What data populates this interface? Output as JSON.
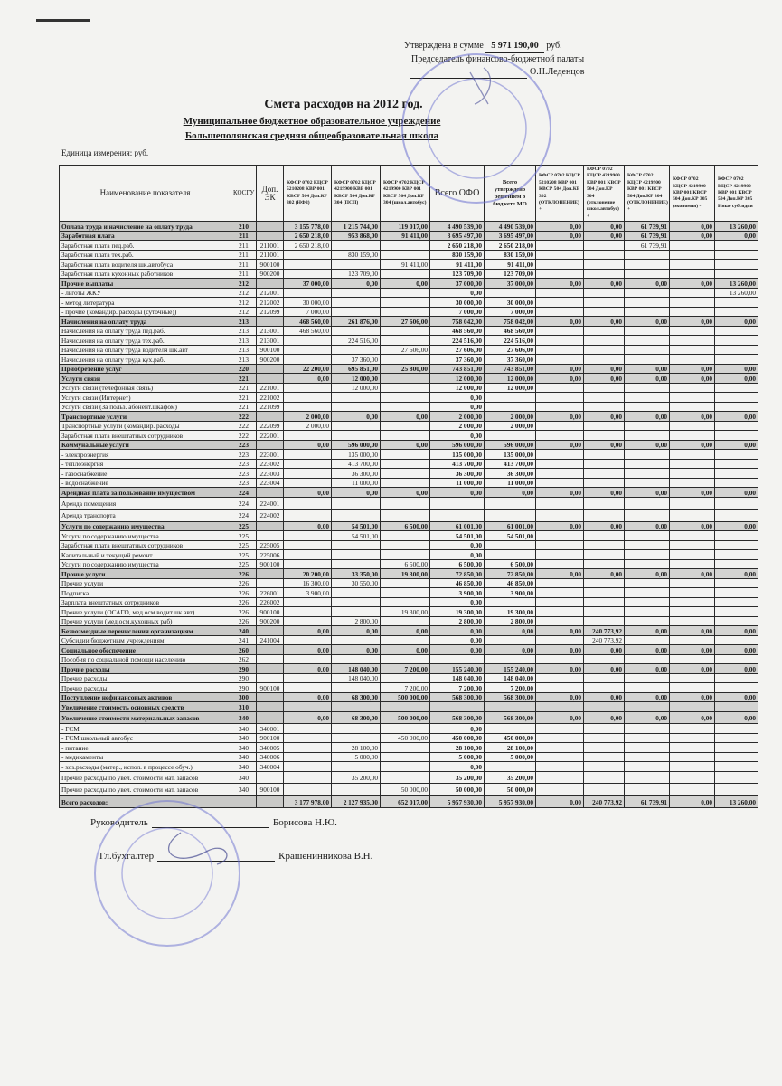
{
  "approval": {
    "prefix": "Утверждена в сумме",
    "sum": "5 971 190,00",
    "currency": "руб.",
    "position": "Председатель финансово-бюджетной палаты",
    "name": "О.Н.Леденцов"
  },
  "title": "Смета расходов на 2012 год.",
  "subtitle1": "Муниципальное бюджетное образовательное учреждение",
  "subtitle2": "Большеполянская средняя общеобразовательная школа",
  "units": "Единица измерения: руб.",
  "headers": [
    "Наименование показателя",
    "КОСГУ",
    "Доп. ЭК",
    "КФСР 0702 КЦСР 5210208 КВР 001 КВСР 504 Доп.КР 302 (НФЗ)",
    "КФСР 0702 КЦСР 4219900 КВР 001 КВСР 504 Доп.КР 304 (ПСП)",
    "КФСР 0702 КЦСР 4219900 КВР 001 КВСР 504 Доп.КР 304 (школ.автобус)",
    "Всего ОФО",
    "Всего утверждено решением о бюджете МО",
    "КФСР 0702 КЦСР 5210208 КВР 001 КВСР 504 Доп.КР 302 (ОТКЛОНЕНИЕ) +",
    "КФСР 0702 КЦСР 4219900 КВР 001 КВСР 504 Доп.КР 304 (отклонение школ.автобус) +",
    "КФСР 0702 КЦСР 4219900 КВР 001 КВСР 504 Доп.КР 304 (ОТКЛОНЕНИЕ) +",
    "КФСР 0702 КЦСР 4219900 КВР 001 КВСР 504 Доп.КР 305 (экономия) -",
    "КФСР 0702 КЦСР 4219900 КВР 001 КВСР 504 Доп.КР 305 Иные субсидии"
  ],
  "rows": [
    {
      "bold": true,
      "cells": [
        "Оплата труда  и начисление на оплату  труда",
        "210",
        "",
        "3 155 778,00",
        "1 215 744,00",
        "119 017,00",
        "4 490 539,00",
        "4 490 539,00",
        "0,00",
        "0,00",
        "61 739,91",
        "0,00",
        "13 260,00"
      ]
    },
    {
      "bold": true,
      "cells": [
        "Заработная плата",
        "211",
        "",
        "2 650 218,00",
        "953 868,00",
        "91 411,00",
        "3 695 497,00",
        "3 695 497,00",
        "0,00",
        "0,00",
        "61 739,91",
        "0,00",
        "0,00"
      ]
    },
    {
      "cells": [
        "Заработная  плата        пед.раб.",
        "211",
        "211001",
        "2 650 218,00",
        "",
        "",
        "2 650 218,00",
        "2 650 218,00",
        "",
        "",
        "61 739,91",
        "",
        ""
      ]
    },
    {
      "cells": [
        "Заработная  плата        тех.раб.",
        "211",
        "211001",
        "",
        "830 159,00",
        "",
        "830 159,00",
        "830 159,00",
        "",
        "",
        "",
        "",
        ""
      ]
    },
    {
      "cells": [
        "Заработная  плата        водителя шк.автобуса",
        "211",
        "900100",
        "",
        "",
        "91 411,00",
        "91 411,00",
        "91 411,00",
        "",
        "",
        "",
        "",
        ""
      ]
    },
    {
      "cells": [
        "Заработная  плата        кухонных работников",
        "211",
        "900200",
        "",
        "123 709,00",
        "",
        "123 709,00",
        "123 709,00",
        "",
        "",
        "",
        "",
        ""
      ]
    },
    {
      "bold": true,
      "cells": [
        "Прочие  выплаты",
        "212",
        "",
        "37 000,00",
        "0,00",
        "0,00",
        "37 000,00",
        "37 000,00",
        "0,00",
        "0,00",
        "0,00",
        "0,00",
        "13 260,00"
      ]
    },
    {
      "cells": [
        "- льготы ЖКУ",
        "212",
        "212001",
        "",
        "",
        "",
        "0,00",
        "",
        "",
        "",
        "",
        "",
        "13 260,00"
      ]
    },
    {
      "cells": [
        "- метод литература",
        "212",
        "212002",
        "30 000,00",
        "",
        "",
        "30 000,00",
        "30 000,00",
        "",
        "",
        "",
        "",
        ""
      ]
    },
    {
      "cells": [
        "- прочие (командир. расходы (суточные))",
        "212",
        "212099",
        "7 000,00",
        "",
        "",
        "7 000,00",
        "7 000,00",
        "",
        "",
        "",
        "",
        ""
      ]
    },
    {
      "bold": true,
      "cells": [
        "Начисления на оплату труда",
        "213",
        "",
        "468 560,00",
        "261 876,00",
        "27 606,00",
        "758 042,00",
        "758 042,00",
        "0,00",
        "0,00",
        "0,00",
        "0,00",
        "0,00"
      ]
    },
    {
      "cells": [
        "Начисления  на оплату труда     пед.раб.",
        "213",
        "213001",
        "468 560,00",
        "",
        "",
        "468 560,00",
        "468 560,00",
        "",
        "",
        "",
        "",
        ""
      ]
    },
    {
      "cells": [
        "Начисления  на оплату труда     тех.раб.",
        "213",
        "213001",
        "",
        "224 516,00",
        "",
        "224 516,00",
        "224 516,00",
        "",
        "",
        "",
        "",
        ""
      ]
    },
    {
      "cells": [
        "Начисления  на оплату труда   водителя шк.авт",
        "213",
        "900100",
        "",
        "",
        "27 606,00",
        "27 606,00",
        "27 606,00",
        "",
        "",
        "",
        "",
        ""
      ]
    },
    {
      "cells": [
        "Начисления  на оплату труда    кух.раб.",
        "213",
        "900200",
        "",
        "37 360,00",
        "",
        "37 360,00",
        "37 360,00",
        "",
        "",
        "",
        "",
        ""
      ]
    },
    {
      "bold": true,
      "cells": [
        "Приобретение  услуг",
        "220",
        "",
        "22 200,00",
        "695 851,00",
        "25 800,00",
        "743 851,00",
        "743 851,00",
        "0,00",
        "0,00",
        "0,00",
        "0,00",
        "0,00"
      ]
    },
    {
      "bold": true,
      "cells": [
        "Услуги  связи",
        "221",
        "",
        "0,00",
        "12 000,00",
        "",
        "12 000,00",
        "12 000,00",
        "0,00",
        "0,00",
        "0,00",
        "0,00",
        "0,00"
      ]
    },
    {
      "cells": [
        "Услуги  связи (телефонная связь)",
        "221",
        "221001",
        "",
        "12 000,00",
        "",
        "12 000,00",
        "12 000,00",
        "",
        "",
        "",
        "",
        ""
      ]
    },
    {
      "cells": [
        "Услуги  связи (Интернет)",
        "221",
        "221002",
        "",
        "",
        "",
        "0,00",
        "",
        "",
        "",
        "",
        "",
        ""
      ]
    },
    {
      "cells": [
        "Услуги связи (За польз. абонент.шкафом)",
        "221",
        "221099",
        "",
        "",
        "",
        "0,00",
        "",
        "",
        "",
        "",
        "",
        ""
      ]
    },
    {
      "bold": true,
      "cells": [
        "Транспортные  услуги",
        "222",
        "",
        "2 000,00",
        "0,00",
        "0,00",
        "2 000,00",
        "2 000,00",
        "0,00",
        "0,00",
        "0,00",
        "0,00",
        "0,00"
      ]
    },
    {
      "cells": [
        "Транспортные услуги  (командир. расходы",
        "222",
        "222099",
        "2 000,00",
        "",
        "",
        "2 000,00",
        "2 000,00",
        "",
        "",
        "",
        "",
        ""
      ]
    },
    {
      "cells": [
        "Заработная плата внештатных сотрудников",
        "222",
        "222001",
        "",
        "",
        "",
        "0,00",
        "",
        "",
        "",
        "",
        "",
        ""
      ]
    },
    {
      "bold": true,
      "cells": [
        "Коммунальные  услуги",
        "223",
        "",
        "0,00",
        "596 000,00",
        "0,00",
        "596 000,00",
        "596 000,00",
        "0,00",
        "0,00",
        "0,00",
        "0,00",
        "0,00"
      ]
    },
    {
      "cells": [
        "- электроэнергия",
        "223",
        "223001",
        "",
        "135 000,00",
        "",
        "135 000,00",
        "135 000,00",
        "",
        "",
        "",
        "",
        ""
      ]
    },
    {
      "cells": [
        "- теплоэнергия",
        "223",
        "223002",
        "",
        "413 700,00",
        "",
        "413 700,00",
        "413 700,00",
        "",
        "",
        "",
        "",
        ""
      ]
    },
    {
      "cells": [
        "- газоснабжение",
        "223",
        "223003",
        "",
        "36 300,00",
        "",
        "36 300,00",
        "36 300,00",
        "",
        "",
        "",
        "",
        ""
      ]
    },
    {
      "cells": [
        "- водоснабжение",
        "223",
        "223004",
        "",
        "11 000,00",
        "",
        "11 000,00",
        "11 000,00",
        "",
        "",
        "",
        "",
        ""
      ]
    },
    {
      "bold": true,
      "cells": [
        "Арендная плата за пользование имуществом",
        "224",
        "",
        "0,00",
        "0,00",
        "0,00",
        "0,00",
        "0,00",
        "0,00",
        "0,00",
        "0,00",
        "0,00",
        "0,00"
      ]
    },
    {
      "tall": true,
      "cells": [
        "Аренда помещения",
        "224",
        "224001",
        "",
        "",
        "",
        "",
        "",
        "",
        "",
        "",
        "",
        ""
      ]
    },
    {
      "tall": true,
      "cells": [
        "Аренда транспорта",
        "224",
        "224002",
        "",
        "",
        "",
        "",
        "",
        "",
        "",
        "",
        "",
        ""
      ]
    },
    {
      "bold": true,
      "cells": [
        "Услуги по содержанию имущества",
        "225",
        "",
        "0,00",
        "54 501,00",
        "6 500,00",
        "61 001,00",
        "61 001,00",
        "0,00",
        "0,00",
        "0,00",
        "0,00",
        "0,00"
      ]
    },
    {
      "cells": [
        "Услуги по содержанию имущества",
        "225",
        "",
        "",
        "54 501,00",
        "",
        "54 501,00",
        "54 501,00",
        "",
        "",
        "",
        "",
        ""
      ]
    },
    {
      "cells": [
        "Заработная плата внештатных сотрудников",
        "225",
        "225005",
        "",
        "",
        "",
        "0,00",
        "",
        "",
        "",
        "",
        "",
        ""
      ]
    },
    {
      "cells": [
        "Капитальный и текущий ремонт",
        "225",
        "225006",
        "",
        "",
        "",
        "0,00",
        "",
        "",
        "",
        "",
        "",
        ""
      ]
    },
    {
      "cells": [
        "Услуги по содержанию имущества",
        "225",
        "900100",
        "",
        "",
        "6 500,00",
        "6 500,00",
        "6 500,00",
        "",
        "",
        "",
        "",
        ""
      ]
    },
    {
      "bold": true,
      "cells": [
        "Прочие  услуги",
        "226",
        "",
        "20 200,00",
        "33 350,00",
        "19 300,00",
        "72 850,00",
        "72 850,00",
        "0,00",
        "0,00",
        "0,00",
        "0,00",
        "0,00"
      ]
    },
    {
      "cells": [
        "Прочие услуги",
        "226",
        "",
        "16 300,00",
        "30 550,00",
        "",
        "46 850,00",
        "46 850,00",
        "",
        "",
        "",
        "",
        ""
      ]
    },
    {
      "cells": [
        "Подписка",
        "226",
        "226001",
        "3 900,00",
        "",
        "",
        "3 900,00",
        "3 900,00",
        "",
        "",
        "",
        "",
        ""
      ]
    },
    {
      "cells": [
        "Зарплата внештатных сотрудников",
        "226",
        "226002",
        "",
        "",
        "",
        "0,00",
        "",
        "",
        "",
        "",
        "",
        ""
      ]
    },
    {
      "cells": [
        "Прочие услуги (ОСАГО, мед.осм.водит.шк.авт)",
        "226",
        "900100",
        "",
        "",
        "19 300,00",
        "19 300,00",
        "19 300,00",
        "",
        "",
        "",
        "",
        ""
      ]
    },
    {
      "cells": [
        "Прочие услуги (мед.осм.кухонных раб)",
        "226",
        "900200",
        "",
        "2 800,00",
        "",
        "2 800,00",
        "2 800,00",
        "",
        "",
        "",
        "",
        ""
      ]
    },
    {
      "bold": true,
      "cells": [
        "Безвозмездные перечисления организациям",
        "240",
        "",
        "0,00",
        "0,00",
        "0,00",
        "0,00",
        "0,00",
        "0,00",
        "240 773,92",
        "0,00",
        "0,00",
        "0,00"
      ]
    },
    {
      "cells": [
        "Субсидии бюджетным учреждениям",
        "241",
        "241004",
        "",
        "",
        "",
        "0,00",
        "",
        "",
        "240 773,92",
        "",
        "",
        ""
      ]
    },
    {
      "bold": true,
      "cells": [
        "Социальное обеспечение",
        "260",
        "",
        "0,00",
        "0,00",
        "0,00",
        "0,00",
        "0,00",
        "0,00",
        "0,00",
        "0,00",
        "0,00",
        "0,00"
      ]
    },
    {
      "cells": [
        "Пособия по социальной помощи населению",
        "262",
        "",
        "",
        "",
        "",
        "",
        "",
        "",
        "",
        "",
        "",
        ""
      ]
    },
    {
      "bold": true,
      "cells": [
        "Прочие расходы",
        "290",
        "",
        "0,00",
        "148 040,00",
        "7 200,00",
        "155 240,00",
        "155 240,00",
        "0,00",
        "0,00",
        "0,00",
        "0,00",
        "0,00"
      ]
    },
    {
      "cells": [
        "Прочие расходы",
        "290",
        "",
        "",
        "148 040,00",
        "",
        "148 040,00",
        "148 040,00",
        "",
        "",
        "",
        "",
        ""
      ]
    },
    {
      "cells": [
        "Прочие расходы",
        "290",
        "900100",
        "",
        "",
        "7 200,00",
        "7 200,00",
        "7 200,00",
        "",
        "",
        "",
        "",
        ""
      ]
    },
    {
      "bold": true,
      "cells": [
        "Поступление нефинансовых активов",
        "300",
        "",
        "0,00",
        "68 300,00",
        "500 000,00",
        "568 300,00",
        "568 300,00",
        "0,00",
        "0,00",
        "0,00",
        "0,00",
        "0,00"
      ]
    },
    {
      "bold": true,
      "cells": [
        "Увеличение стоимость основных средств",
        "310",
        "",
        "",
        "",
        "",
        "",
        "",
        "",
        "",
        "",
        "",
        ""
      ]
    },
    {
      "bold": true,
      "tall": true,
      "cells": [
        "Увеличение стоимости  материальных запасов",
        "340",
        "",
        "0,00",
        "68 300,00",
        "500 000,00",
        "568 300,00",
        "568 300,00",
        "0,00",
        "0,00",
        "0,00",
        "0,00",
        "0,00"
      ]
    },
    {
      "cells": [
        "- ГСМ",
        "340",
        "340001",
        "",
        "",
        "",
        "0,00",
        "",
        "",
        "",
        "",
        "",
        ""
      ]
    },
    {
      "cells": [
        "- ГСМ    школьный автобус",
        "340",
        "900100",
        "",
        "",
        "450 000,00",
        "450 000,00",
        "450 000,00",
        "",
        "",
        "",
        "",
        ""
      ]
    },
    {
      "cells": [
        "- питание",
        "340",
        "340005",
        "",
        "28 100,00",
        "",
        "28 100,00",
        "28 100,00",
        "",
        "",
        "",
        "",
        ""
      ]
    },
    {
      "cells": [
        "- медикаменты",
        "340",
        "340006",
        "",
        "5 000,00",
        "",
        "5 000,00",
        "5 000,00",
        "",
        "",
        "",
        "",
        ""
      ]
    },
    {
      "cells": [
        "- хоз.расходы    (матер., испол. в процессе обуч.)",
        "340",
        "340004",
        "",
        "",
        "",
        "0,00",
        "",
        "",
        "",
        "",
        "",
        ""
      ]
    },
    {
      "tall": true,
      "cells": [
        "Прочие расходы по увел. стоимости мат. запасов",
        "340",
        "",
        "",
        "35 200,00",
        "",
        "35 200,00",
        "35 200,00",
        "",
        "",
        "",
        "",
        ""
      ]
    },
    {
      "tall": true,
      "cells": [
        "Прочие расходы по увел. стоимости мат. запасов",
        "340",
        "900100",
        "",
        "",
        "50 000,00",
        "50 000,00",
        "50 000,00",
        "",
        "",
        "",
        "",
        ""
      ]
    },
    {
      "bold": true,
      "tall": true,
      "cells": [
        "Всего  расходов:",
        "",
        "",
        "3 177 978,00",
        "2 127 935,00",
        "652 017,00",
        "5 957 930,00",
        "5 957 930,00",
        "0,00",
        "240 773,92",
        "61 739,91",
        "0,00",
        "13 260,00"
      ]
    }
  ],
  "signatures": {
    "head_label": "Руководитель",
    "head_name": "Борисова Н.Ю.",
    "accountant_label": "Гл.бухгалтер",
    "accountant_name": "Крашенинникова В.Н."
  },
  "colors": {
    "stamp": "#6a6fd0",
    "ink": "#1a1a1a",
    "paper": "#f3f3f1",
    "section_row": "#c9c9c7"
  }
}
